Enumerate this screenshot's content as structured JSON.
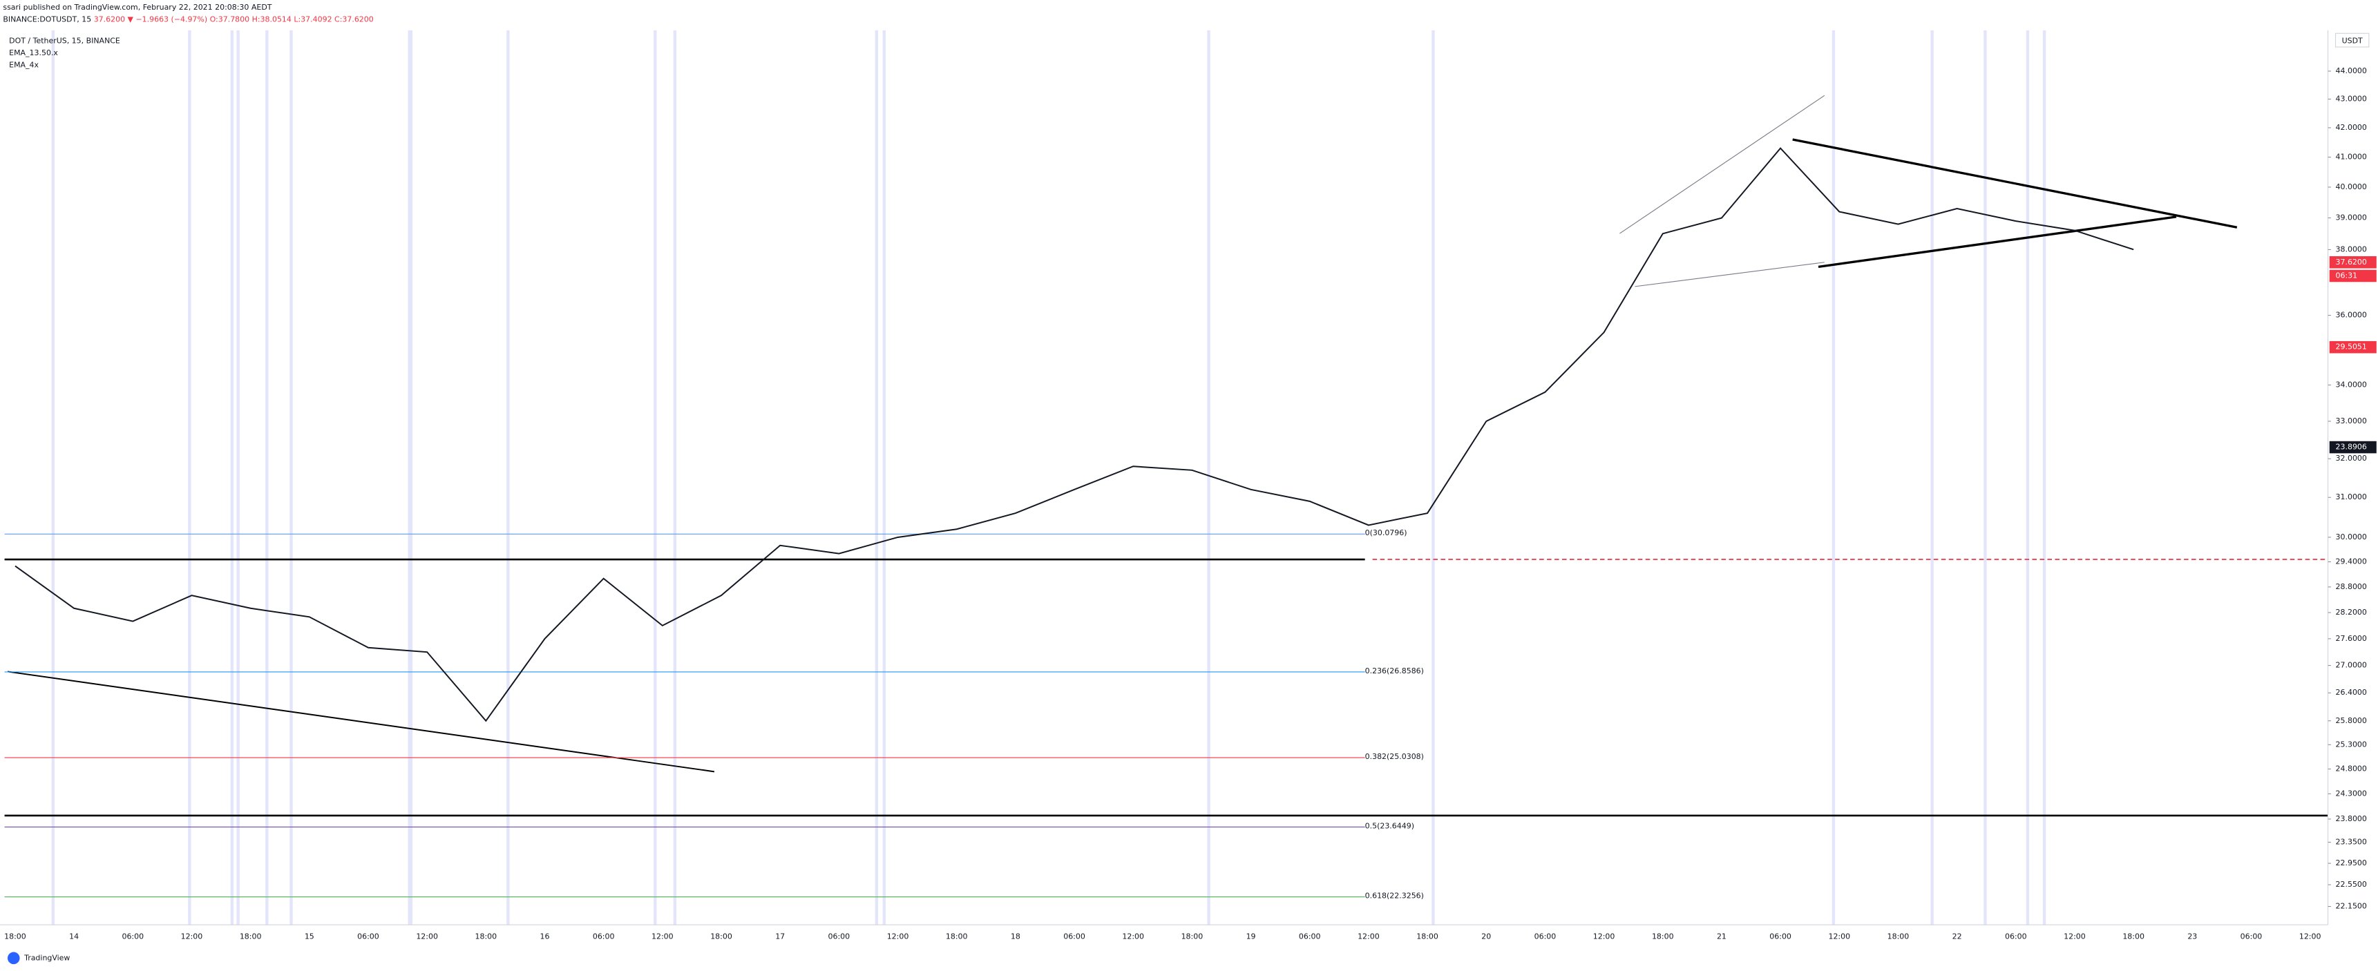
{
  "header": {
    "published": "ssari published on TradingView.com, February 22, 2021 20:08:30 AEDT",
    "symbol": "BINANCE:DOTUSDT, 15",
    "change": "37.6200 ▼ −1.9663 (−4.97%)",
    "ohlc": "O:37.7800 H:38.0514 L:37.4092 C:37.6200"
  },
  "legend": [
    "DOT / TetherUS, 15, BINANCE",
    "EMA_13.50.x",
    "EMA_4x"
  ],
  "chart": {
    "type": "line",
    "currency": "USDT",
    "log": true,
    "color": "#131722",
    "ylim": [
      21.82,
      45.5
    ],
    "yticks": [
      {
        "value": 44,
        "label": "44.0000"
      },
      {
        "value": 43,
        "label": "43.0000"
      },
      {
        "value": 42,
        "label": "42.0000"
      },
      {
        "value": 41,
        "label": "41.0000"
      },
      {
        "value": 40,
        "label": "40.0000"
      },
      {
        "value": 39,
        "label": "39.0000"
      },
      {
        "value": 38,
        "label": "38.0000"
      },
      {
        "value": 36,
        "label": "36.0000"
      },
      {
        "value": 34,
        "label": "34.0000"
      },
      {
        "value": 33,
        "label": "33.0000"
      },
      {
        "value": 32,
        "label": "32.0000"
      },
      {
        "value": 31,
        "label": "31.0000"
      },
      {
        "value": 30,
        "label": "30.0000"
      },
      {
        "value": 29.4,
        "label": "29.4000"
      },
      {
        "value": 28.8,
        "label": "28.8000"
      },
      {
        "value": 28.2,
        "label": "28.2000"
      },
      {
        "value": 27.6,
        "label": "27.6000"
      },
      {
        "value": 27,
        "label": "27.0000"
      },
      {
        "value": 26.4,
        "label": "26.4000"
      },
      {
        "value": 25.8,
        "label": "25.8000"
      },
      {
        "value": 25.3,
        "label": "25.3000"
      },
      {
        "value": 24.8,
        "label": "24.8000"
      },
      {
        "value": 24.3,
        "label": "24.3000"
      },
      {
        "value": 23.8,
        "label": "23.8000"
      },
      {
        "value": 23.35,
        "label": "23.3500"
      },
      {
        "value": 22.95,
        "label": "22.9500"
      },
      {
        "value": 22.55,
        "label": "22.5500"
      },
      {
        "value": 22.15,
        "label": "22.1500"
      }
    ],
    "xticks": [
      "18:00",
      "14",
      "06:00",
      "12:00",
      "18:00",
      "15",
      "06:00",
      "12:00",
      "18:00",
      "16",
      "06:00",
      "12:00",
      "18:00",
      "17",
      "06:00",
      "12:00",
      "18:00",
      "18",
      "06:00",
      "12:00",
      "18:00",
      "19",
      "06:00",
      "12:00",
      "18:00",
      "20",
      "06:00",
      "12:00",
      "18:00",
      "21",
      "06:00",
      "12:00",
      "18:00",
      "22",
      "06:00",
      "12:00",
      "18:00",
      "23",
      "06:00",
      "12:00"
    ],
    "close": [
      29.3,
      28.3,
      28.0,
      28.6,
      28.3,
      28.1,
      27.4,
      27.3,
      25.8,
      27.6,
      29.0,
      27.9,
      28.6,
      29.8,
      29.6,
      30.0,
      30.2,
      30.6,
      31.2,
      31.8,
      31.7,
      31.2,
      30.9,
      30.3,
      30.6,
      33.0,
      33.8,
      35.5,
      38.5,
      39.0,
      41.3,
      39.2,
      38.8,
      39.3,
      38.9,
      38.6,
      38.0,
      null,
      null,
      null
    ],
    "price_labels": [
      {
        "text": "37.6200",
        "color": "#f23645"
      },
      {
        "text": "06:31",
        "color": "#f23645"
      },
      {
        "text": "29.5051",
        "color": "#f23645"
      },
      {
        "text": "23.8906",
        "color": "#131722"
      }
    ]
  },
  "fib": [
    {
      "label": "0(30.0796)",
      "price": 30.0796,
      "color": "#5b9cf6"
    },
    {
      "label": "0.236(26.8586)",
      "price": 26.8586,
      "color": "#2196f3"
    },
    {
      "label": "0.382(25.0308)",
      "price": 25.0308,
      "color": "#f23645"
    },
    {
      "label": "0.5(23.6449)",
      "price": 23.6449,
      "color": "#673ab7"
    },
    {
      "label": "0.618(22.3256)",
      "price": 22.3256,
      "color": "#4caf50"
    }
  ],
  "footer": "TradingView"
}
